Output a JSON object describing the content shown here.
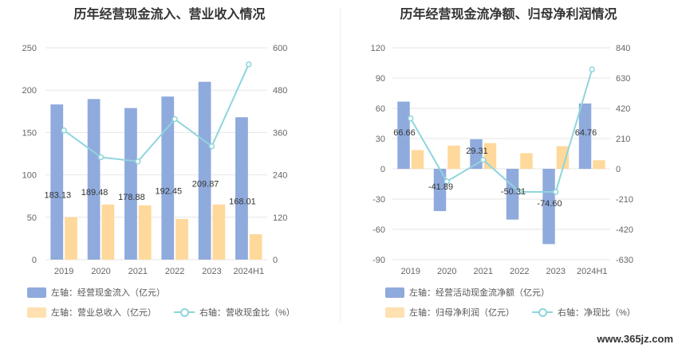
{
  "chart_data": [
    {
      "type": "bar",
      "title": "历年经营现金流入、营业收入情况",
      "categories": [
        "2019",
        "2020",
        "2021",
        "2022",
        "2023",
        "2024H1"
      ],
      "left_axis": {
        "ticks": [
          "0",
          "50",
          "100",
          "150",
          "200",
          "250"
        ],
        "ylim": [
          0,
          250
        ]
      },
      "right_axis": {
        "ticks": [
          "0",
          "120",
          "240",
          "360",
          "480",
          "600"
        ],
        "ylim": [
          0,
          600
        ]
      },
      "series": [
        {
          "name": "左轴：经营现金流入（亿元）",
          "type": "bar",
          "axis": "left",
          "color": "#8faadc",
          "values": [
            183.13,
            189.48,
            178.88,
            192.45,
            209.87,
            168.01
          ],
          "labels": [
            "183.13",
            "189.48",
            "178.88",
            "192.45",
            "209.87",
            "168.01"
          ]
        },
        {
          "name": "左轴：营业总收入（亿元）",
          "type": "bar",
          "axis": "left",
          "color": "#ffd99b",
          "values": [
            50,
            65,
            64,
            48,
            65,
            30
          ]
        },
        {
          "name": "右轴：营收现金比（%）",
          "type": "line",
          "axis": "right",
          "color": "#8fd5dc",
          "values": [
            366,
            290,
            278,
            398,
            321,
            553
          ]
        }
      ]
    },
    {
      "type": "bar",
      "title": "历年经营现金流净额、归母净利润情况",
      "categories": [
        "2019",
        "2020",
        "2021",
        "2022",
        "2023",
        "2024H1"
      ],
      "left_axis": {
        "ticks": [
          "-90",
          "-60",
          "-30",
          "0",
          "30",
          "60",
          "90",
          "120"
        ],
        "ylim": [
          -90,
          120
        ]
      },
      "right_axis": {
        "ticks": [
          "-630",
          "-420",
          "-210",
          "0",
          "210",
          "420",
          "630",
          "840"
        ],
        "ylim": [
          -630,
          840
        ]
      },
      "series": [
        {
          "name": "左轴：经营活动现金流净额（亿元）",
          "type": "bar",
          "axis": "left",
          "color": "#8faadc",
          "values": [
            66.66,
            -41.89,
            29.31,
            -50.31,
            -74.6,
            64.76
          ],
          "labels": [
            "66.66",
            "-41.89",
            "29.31",
            "-50.31",
            "-74.60",
            "64.76"
          ]
        },
        {
          "name": "左轴：归母净利润（亿元）",
          "type": "bar",
          "axis": "left",
          "color": "#ffd99b",
          "values": [
            18.5,
            23,
            25.5,
            15.5,
            22.5,
            8.5
          ]
        },
        {
          "name": "右轴：净现比（%）",
          "type": "line",
          "axis": "right",
          "color": "#8fd5dc",
          "values": [
            350,
            -88,
            62,
            -160,
            -160,
            690
          ]
        }
      ]
    }
  ],
  "watermark": "www.365jz.com"
}
